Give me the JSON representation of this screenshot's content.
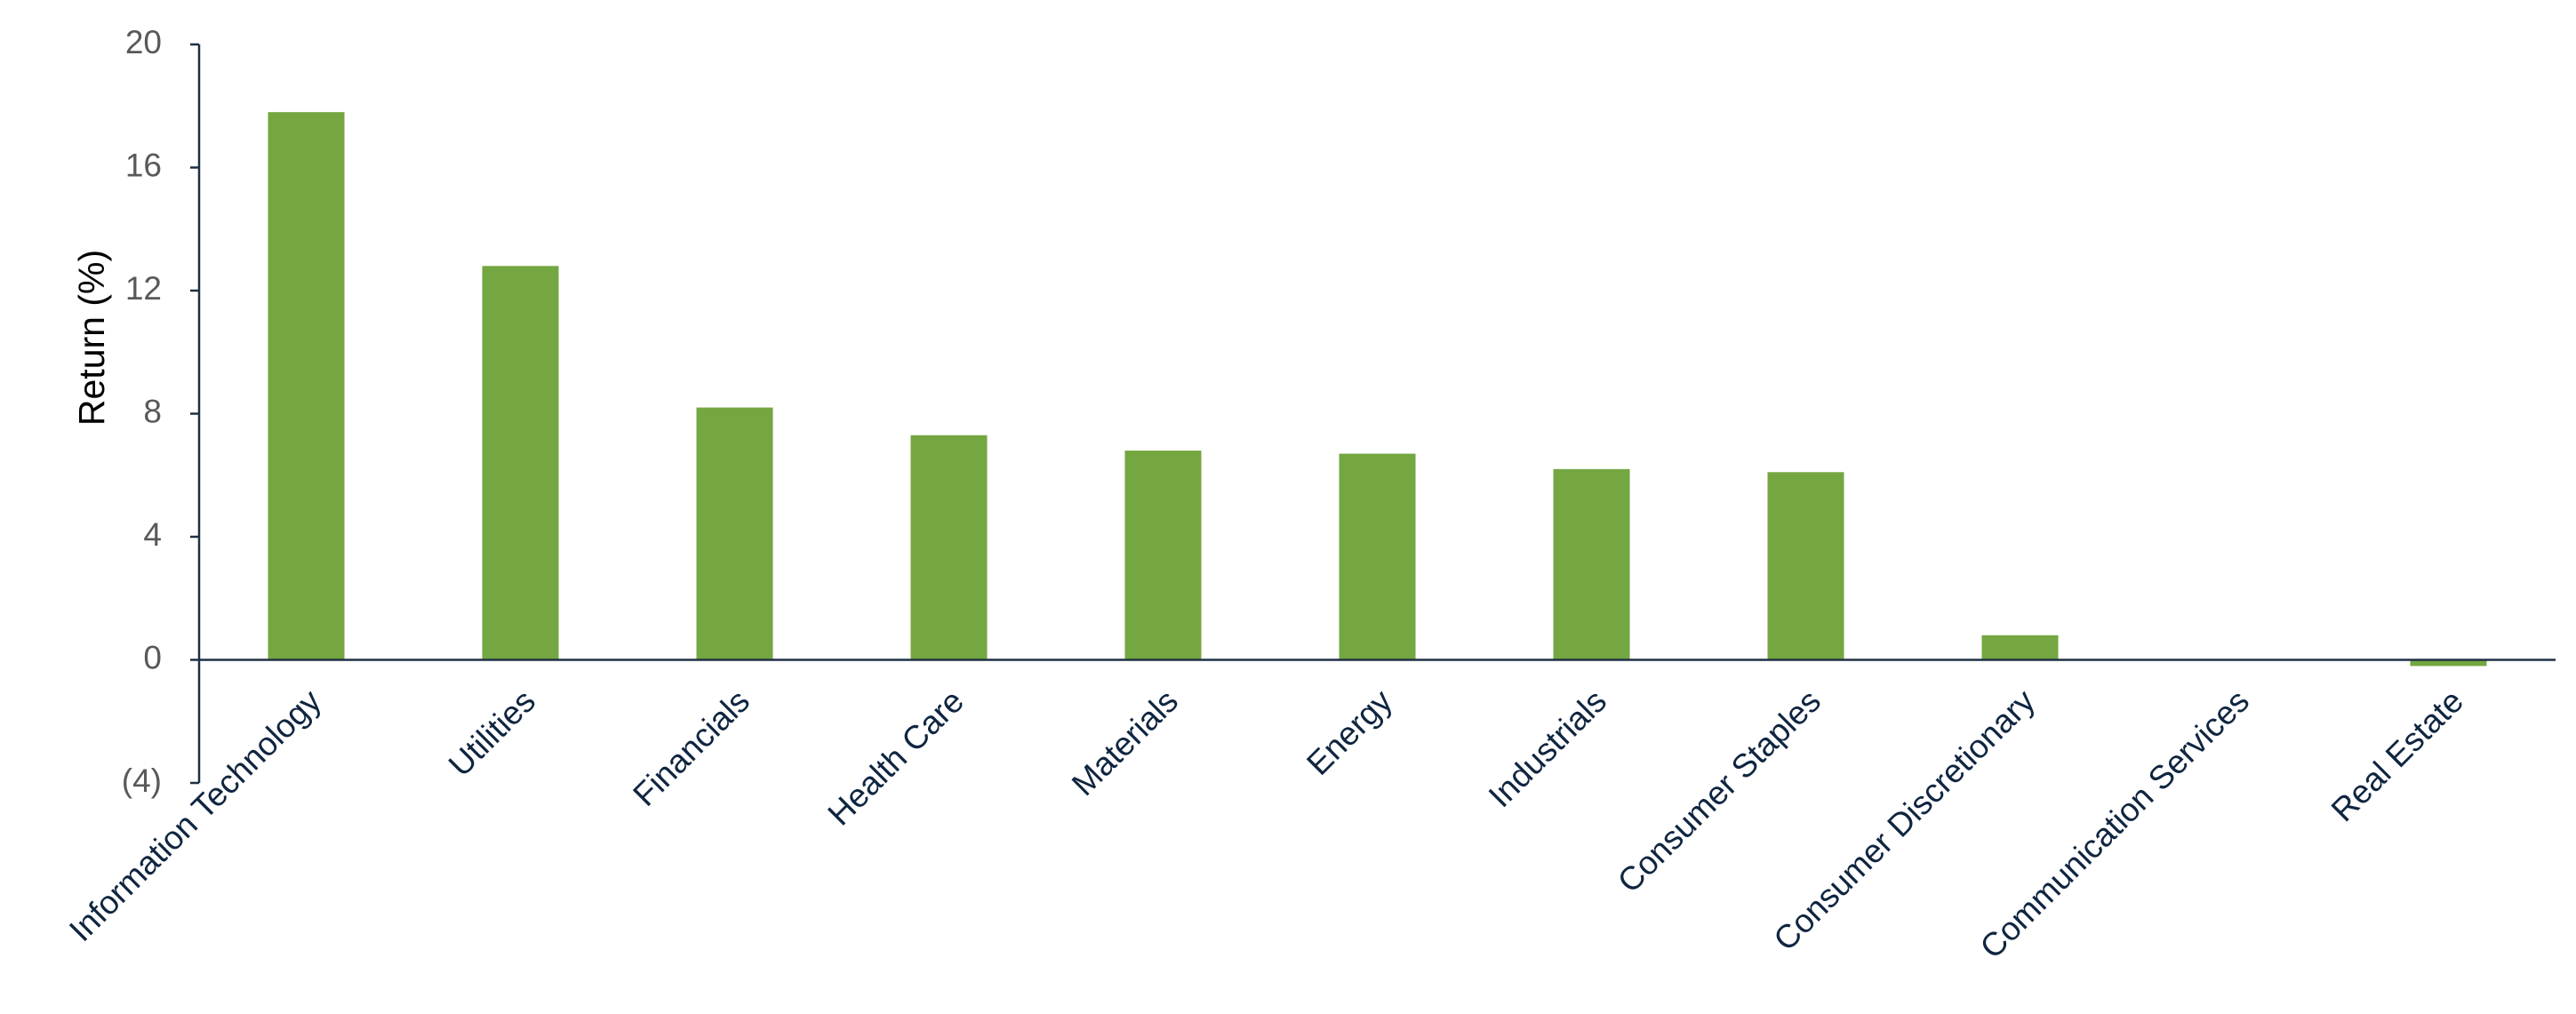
{
  "chart_data": {
    "type": "bar",
    "y_label": "Return (%)",
    "categories": [
      "Information Technology",
      "Utilities",
      "Financials",
      "Health Care",
      "Materials",
      "Energy",
      "Industrials",
      "Consumer Staples",
      "Consumer Discretionary",
      "Communication Services",
      "Real Estate"
    ],
    "values": [
      17.8,
      12.8,
      8.2,
      7.3,
      6.8,
      6.7,
      6.2,
      6.1,
      0.8,
      0,
      -0.2
    ],
    "color": "#74a641",
    "ylim": [
      -4,
      20
    ],
    "yticks": [
      {
        "value": -4,
        "label": "(4)"
      },
      0,
      4,
      8,
      12,
      16,
      20
    ],
    "grid": false
  }
}
